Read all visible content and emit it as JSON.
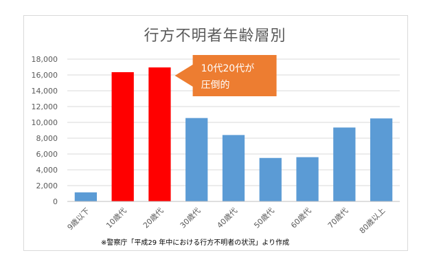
{
  "chart_data": {
    "type": "bar",
    "title": "行方不明者年齢層別",
    "categories": [
      "9歳以下",
      "10歳代",
      "20歳代",
      "30歳代",
      "40歳代",
      "50歳代",
      "60歳代",
      "70歳代",
      "80歳以上"
    ],
    "values": [
      1150,
      16350,
      16950,
      10550,
      8400,
      5500,
      5600,
      9350,
      10500
    ],
    "bar_colors": [
      "#5b9bd5",
      "#ff0000",
      "#ff0000",
      "#5b9bd5",
      "#5b9bd5",
      "#5b9bd5",
      "#5b9bd5",
      "#5b9bd5",
      "#5b9bd5"
    ],
    "ylim": [
      0,
      18000
    ],
    "yticks": [
      0,
      2000,
      4000,
      6000,
      8000,
      10000,
      12000,
      14000,
      16000,
      18000
    ],
    "ytick_labels": [
      "0",
      "2,000",
      "4,000",
      "6,000",
      "8,000",
      "10,000",
      "12,000",
      "14,000",
      "16,000",
      "18,000"
    ],
    "grid": true,
    "annotation": {
      "lines": [
        "10代20代が",
        "圧倒的"
      ],
      "color": "#ed7d31",
      "points_to": "20歳代"
    },
    "source_note": "※警察庁「平成29 年中における行方不明者の状況」より作成"
  }
}
